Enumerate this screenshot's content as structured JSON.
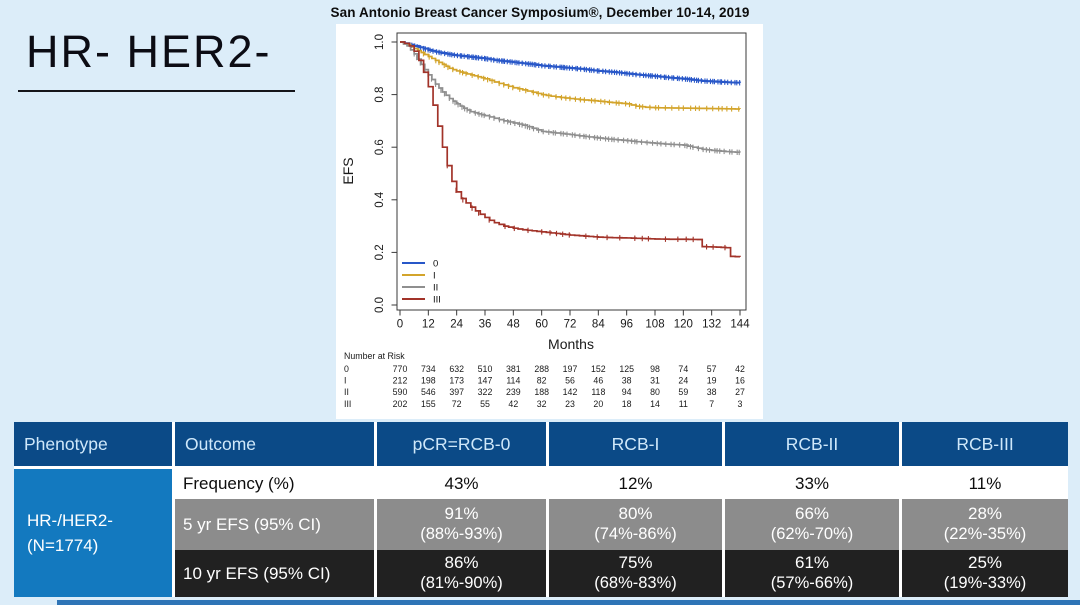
{
  "slide": {
    "title": "San Antonio Breast Cancer Symposium®, December 10-14, 2019",
    "heading": "HR- HER2-"
  },
  "chart_data": {
    "type": "line",
    "subtype": "kaplan-meier-step",
    "title": "",
    "xlabel": "Months",
    "ylabel": "EFS",
    "xlim": [
      0,
      144
    ],
    "ylim": [
      0.0,
      1.0
    ],
    "xticks": [
      0,
      12,
      24,
      36,
      48,
      60,
      72,
      84,
      96,
      108,
      120,
      132,
      144
    ],
    "yticks": [
      0.0,
      0.2,
      0.4,
      0.6,
      0.8,
      1.0
    ],
    "grid": false,
    "legend_position": "bottom-left",
    "series": [
      {
        "name": "0",
        "color": "#2857c8",
        "censor_start": 5,
        "censor_step": 1.1,
        "points": [
          [
            0,
            1.0
          ],
          [
            2,
            0.995
          ],
          [
            4,
            0.99
          ],
          [
            6,
            0.985
          ],
          [
            8,
            0.98
          ],
          [
            10,
            0.975
          ],
          [
            12,
            0.97
          ],
          [
            15,
            0.963
          ],
          [
            18,
            0.958
          ],
          [
            21,
            0.953
          ],
          [
            24,
            0.949
          ],
          [
            28,
            0.945
          ],
          [
            32,
            0.941
          ],
          [
            36,
            0.937
          ],
          [
            40,
            0.931
          ],
          [
            44,
            0.927
          ],
          [
            48,
            0.923
          ],
          [
            52,
            0.919
          ],
          [
            56,
            0.915
          ],
          [
            60,
            0.91
          ],
          [
            64,
            0.907
          ],
          [
            68,
            0.904
          ],
          [
            72,
            0.901
          ],
          [
            76,
            0.898
          ],
          [
            80,
            0.894
          ],
          [
            84,
            0.89
          ],
          [
            88,
            0.887
          ],
          [
            92,
            0.884
          ],
          [
            96,
            0.88
          ],
          [
            100,
            0.876
          ],
          [
            104,
            0.873
          ],
          [
            108,
            0.87
          ],
          [
            112,
            0.866
          ],
          [
            116,
            0.863
          ],
          [
            120,
            0.86
          ],
          [
            124,
            0.856
          ],
          [
            128,
            0.852
          ],
          [
            132,
            0.85
          ],
          [
            136,
            0.848
          ],
          [
            140,
            0.846
          ],
          [
            144,
            0.845
          ]
        ]
      },
      {
        "name": "I",
        "color": "#d3a42b",
        "censor_start": 8,
        "censor_step": 2.2,
        "points": [
          [
            0,
            1.0
          ],
          [
            3,
            0.99
          ],
          [
            6,
            0.975
          ],
          [
            9,
            0.96
          ],
          [
            12,
            0.945
          ],
          [
            15,
            0.93
          ],
          [
            18,
            0.915
          ],
          [
            21,
            0.9
          ],
          [
            24,
            0.89
          ],
          [
            27,
            0.882
          ],
          [
            30,
            0.875
          ],
          [
            33,
            0.868
          ],
          [
            36,
            0.86
          ],
          [
            40,
            0.848
          ],
          [
            44,
            0.837
          ],
          [
            48,
            0.826
          ],
          [
            52,
            0.818
          ],
          [
            56,
            0.809
          ],
          [
            60,
            0.8
          ],
          [
            64,
            0.794
          ],
          [
            68,
            0.789
          ],
          [
            72,
            0.785
          ],
          [
            76,
            0.781
          ],
          [
            80,
            0.778
          ],
          [
            84,
            0.775
          ],
          [
            88,
            0.771
          ],
          [
            92,
            0.768
          ],
          [
            96,
            0.765
          ],
          [
            100,
            0.756
          ],
          [
            104,
            0.752
          ],
          [
            108,
            0.75
          ],
          [
            116,
            0.749
          ],
          [
            124,
            0.748
          ],
          [
            132,
            0.747
          ],
          [
            138,
            0.746
          ],
          [
            144,
            0.745
          ]
        ]
      },
      {
        "name": "II",
        "color": "#8f8f8f",
        "censor_start": 6,
        "censor_step": 1.6,
        "points": [
          [
            0,
            1.0
          ],
          [
            3,
            0.985
          ],
          [
            6,
            0.955
          ],
          [
            9,
            0.915
          ],
          [
            12,
            0.875
          ],
          [
            15,
            0.84
          ],
          [
            18,
            0.81
          ],
          [
            21,
            0.785
          ],
          [
            24,
            0.765
          ],
          [
            27,
            0.748
          ],
          [
            30,
            0.735
          ],
          [
            33,
            0.727
          ],
          [
            36,
            0.72
          ],
          [
            40,
            0.71
          ],
          [
            44,
            0.7
          ],
          [
            48,
            0.692
          ],
          [
            52,
            0.684
          ],
          [
            56,
            0.672
          ],
          [
            60,
            0.66
          ],
          [
            64,
            0.656
          ],
          [
            68,
            0.652
          ],
          [
            72,
            0.648
          ],
          [
            76,
            0.643
          ],
          [
            80,
            0.639
          ],
          [
            84,
            0.635
          ],
          [
            88,
            0.631
          ],
          [
            92,
            0.628
          ],
          [
            96,
            0.625
          ],
          [
            100,
            0.621
          ],
          [
            104,
            0.618
          ],
          [
            108,
            0.615
          ],
          [
            112,
            0.612
          ],
          [
            116,
            0.61
          ],
          [
            120,
            0.608
          ],
          [
            124,
            0.6
          ],
          [
            128,
            0.592
          ],
          [
            132,
            0.588
          ],
          [
            136,
            0.585
          ],
          [
            140,
            0.582
          ],
          [
            144,
            0.58
          ]
        ]
      },
      {
        "name": "III",
        "color": "#a23329",
        "censor_start": 20,
        "censor_step": 5,
        "points": [
          [
            0,
            1.0
          ],
          [
            2,
            0.995
          ],
          [
            4,
            0.985
          ],
          [
            6,
            0.965
          ],
          [
            8,
            0.93
          ],
          [
            10,
            0.885
          ],
          [
            12,
            0.83
          ],
          [
            14,
            0.76
          ],
          [
            16,
            0.68
          ],
          [
            18,
            0.6
          ],
          [
            20,
            0.53
          ],
          [
            22,
            0.47
          ],
          [
            24,
            0.43
          ],
          [
            26,
            0.405
          ],
          [
            28,
            0.388
          ],
          [
            30,
            0.372
          ],
          [
            32,
            0.358
          ],
          [
            34,
            0.345
          ],
          [
            36,
            0.333
          ],
          [
            38,
            0.322
          ],
          [
            40,
            0.313
          ],
          [
            44,
            0.3
          ],
          [
            48,
            0.292
          ],
          [
            52,
            0.286
          ],
          [
            56,
            0.282
          ],
          [
            60,
            0.278
          ],
          [
            66,
            0.272
          ],
          [
            72,
            0.266
          ],
          [
            78,
            0.262
          ],
          [
            84,
            0.258
          ],
          [
            90,
            0.256
          ],
          [
            96,
            0.255
          ],
          [
            102,
            0.253
          ],
          [
            108,
            0.251
          ],
          [
            114,
            0.25
          ],
          [
            120,
            0.25
          ],
          [
            126,
            0.249
          ],
          [
            128,
            0.222
          ],
          [
            134,
            0.22
          ],
          [
            138,
            0.218
          ],
          [
            140,
            0.185
          ],
          [
            144,
            0.183
          ]
        ]
      }
    ],
    "number_at_risk": {
      "label": "Number at Risk",
      "times": [
        0,
        12,
        24,
        36,
        48,
        60,
        72,
        84,
        96,
        108,
        120,
        132,
        144
      ],
      "rows": [
        {
          "name": "0",
          "values": [
            770,
            734,
            632,
            510,
            381,
            288,
            197,
            152,
            125,
            98,
            74,
            57,
            42
          ]
        },
        {
          "name": "I",
          "values": [
            212,
            198,
            173,
            147,
            114,
            82,
            56,
            46,
            38,
            31,
            24,
            19,
            16
          ]
        },
        {
          "name": "II",
          "values": [
            590,
            546,
            397,
            322,
            239,
            188,
            142,
            118,
            94,
            80,
            59,
            38,
            27
          ]
        },
        {
          "name": "III",
          "values": [
            202,
            155,
            72,
            55,
            42,
            32,
            23,
            20,
            18,
            14,
            11,
            7,
            3
          ]
        }
      ]
    }
  },
  "table": {
    "headers": {
      "phenotype": "Phenotype",
      "outcome": "Outcome",
      "rcb0": "pCR=RCB-0",
      "rcb1": "RCB-I",
      "rcb2": "RCB-II",
      "rcb3": "RCB-III"
    },
    "phenotype_line1": "HR-/HER2-",
    "phenotype_line2": "(N=1774)",
    "rows": [
      {
        "label": "Frequency (%)",
        "cells": [
          {
            "pct": "43%"
          },
          {
            "pct": "12%"
          },
          {
            "pct": "33%"
          },
          {
            "pct": "11%"
          }
        ]
      },
      {
        "label": "5 yr EFS (95% CI)",
        "cells": [
          {
            "pct": "91%",
            "ci": "(88%-93%)"
          },
          {
            "pct": "80%",
            "ci": "(74%-86%)"
          },
          {
            "pct": "66%",
            "ci": "(62%-70%)"
          },
          {
            "pct": "28%",
            "ci": "(22%-35%)"
          }
        ]
      },
      {
        "label": "10 yr EFS (95% CI)",
        "cells": [
          {
            "pct": "86%",
            "ci": "(81%-90%)"
          },
          {
            "pct": "75%",
            "ci": "(68%-83%)"
          },
          {
            "pct": "61%",
            "ci": "(57%-66%)"
          },
          {
            "pct": "25%",
            "ci": "(19%-33%)"
          }
        ]
      }
    ],
    "colors": {
      "header_bg": "#0b4a87",
      "header_text": "#cfe8fa",
      "phenotype_bg": "#1379bf",
      "gray_row_bg": "#8c8c8c",
      "dark_row_bg": "#212121",
      "accent_bottom_bar": "#2e74b6"
    }
  }
}
